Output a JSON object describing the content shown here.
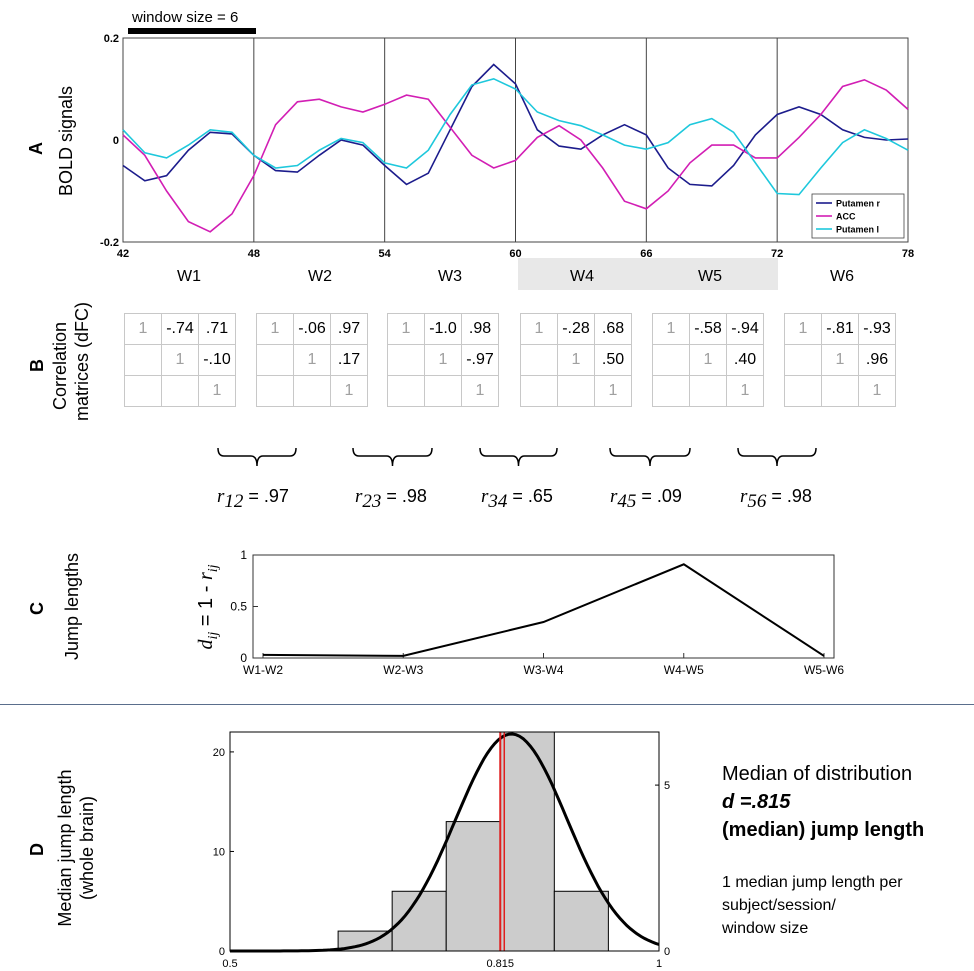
{
  "panel_a": {
    "letter": "A",
    "ylabel": "BOLD signals",
    "window_size_label": "window size = 6",
    "yticks": [
      "0.2",
      "0",
      "-0.2"
    ],
    "xticks": [
      "42",
      "48",
      "54",
      "60",
      "66",
      "72",
      "78"
    ],
    "windows": [
      "W1",
      "W2",
      "W3",
      "W4",
      "W5",
      "W6"
    ],
    "legend": [
      {
        "name": "Putamen r",
        "color": "#1c1c8c"
      },
      {
        "name": "ACC",
        "color": "#d21eb4"
      },
      {
        "name": "Putamen l",
        "color": "#1ec8dc"
      }
    ]
  },
  "panel_b": {
    "letter": "B",
    "ylabel_line1": "Correlation",
    "ylabel_line2": "matrices (dFC)",
    "matrices": [
      {
        "a": "1",
        "b": "-.74",
        "c": ".71",
        "e": "1",
        "f": "-.10",
        "i": "1"
      },
      {
        "a": "1",
        "b": "-.06",
        "c": ".97",
        "e": "1",
        "f": ".17",
        "i": "1"
      },
      {
        "a": "1",
        "b": "-1.0",
        "c": ".98",
        "e": "1",
        "f": "-.97",
        "i": "1"
      },
      {
        "a": "1",
        "b": "-.28",
        "c": ".68",
        "e": "1",
        "f": ".50",
        "i": "1"
      },
      {
        "a": "1",
        "b": "-.58",
        "c": "-.94",
        "e": "1",
        "f": ".40",
        "i": "1"
      },
      {
        "a": "1",
        "b": "-.81",
        "c": "-.93",
        "e": "1",
        "f": ".96",
        "i": "1"
      }
    ],
    "r_values": [
      {
        "sym": "r",
        "sub": "12",
        "val": " = .97"
      },
      {
        "sym": "r",
        "sub": "23",
        "val": " = .98"
      },
      {
        "sym": "r",
        "sub": "34",
        "val": " = .65"
      },
      {
        "sym": "r",
        "sub": "45",
        "val": " = .09"
      },
      {
        "sym": "r",
        "sub": "56",
        "val": " = .98"
      }
    ]
  },
  "panel_c": {
    "letter": "C",
    "ylabel": "Jump lengths",
    "formula_d": "d",
    "formula_dsub": "ij",
    "formula_mid": " = 1 - ",
    "formula_r": "r",
    "formula_rsub": "ij"
  },
  "panel_d": {
    "letter": "D",
    "ylabel_line1": "Median jump length",
    "ylabel_line2": "(whole brain)",
    "text_line1": "Median of distribution",
    "text_line2": "d =.815",
    "text_line3": "(median) jump length",
    "note_line1": "1 median jump length per",
    "note_line2": "subject/session/",
    "note_line3": "window size"
  },
  "chart_data": [
    {
      "type": "line",
      "x": [
        42,
        43,
        44,
        45,
        46,
        47,
        48,
        49,
        50,
        51,
        52,
        53,
        54,
        55,
        56,
        57,
        58,
        59,
        60,
        61,
        62,
        63,
        64,
        65,
        66,
        67,
        68,
        69,
        70,
        71,
        72,
        73,
        74,
        75,
        76,
        77,
        78
      ],
      "series": [
        {
          "name": "Putamen r",
          "values": [
            -0.05,
            -0.08,
            -0.07,
            -0.02,
            0.015,
            0.012,
            -0.03,
            -0.06,
            -0.063,
            -0.03,
            0.0,
            -0.01,
            -0.05,
            -0.087,
            -0.065,
            0.02,
            0.105,
            0.148,
            0.11,
            0.02,
            -0.012,
            -0.018,
            0.01,
            0.03,
            0.01,
            -0.055,
            -0.087,
            -0.09,
            -0.05,
            0.01,
            0.05,
            0.065,
            0.05,
            0.02,
            0.005,
            0.0,
            0.002
          ]
        },
        {
          "name": "ACC",
          "values": [
            0.01,
            -0.03,
            -0.1,
            -0.16,
            -0.18,
            -0.145,
            -0.07,
            0.03,
            0.075,
            0.08,
            0.065,
            0.055,
            0.07,
            0.088,
            0.08,
            0.025,
            -0.03,
            -0.055,
            -0.04,
            0.005,
            0.028,
            0.0,
            -0.055,
            -0.12,
            -0.135,
            -0.1,
            -0.045,
            -0.01,
            -0.01,
            -0.035,
            -0.035,
            0.005,
            0.05,
            0.105,
            0.118,
            0.098,
            0.06
          ]
        },
        {
          "name": "Putamen l",
          "values": [
            0.02,
            -0.025,
            -0.035,
            -0.01,
            0.02,
            0.015,
            -0.03,
            -0.055,
            -0.05,
            -0.02,
            0.003,
            -0.005,
            -0.045,
            -0.055,
            -0.02,
            0.05,
            0.108,
            0.12,
            0.1,
            0.055,
            0.038,
            0.028,
            0.01,
            -0.01,
            -0.018,
            -0.005,
            0.03,
            0.042,
            0.015,
            -0.045,
            -0.105,
            -0.107,
            -0.055,
            -0.005,
            0.02,
            0.003,
            -0.02
          ]
        }
      ],
      "xlim": [
        42,
        78
      ],
      "ylim": [
        -0.2,
        0.2
      ],
      "ylabel": "BOLD signals"
    },
    {
      "type": "line",
      "categories": [
        "W1-W2",
        "W2-W3",
        "W3-W4",
        "W4-W5",
        "W5-W6"
      ],
      "values": [
        0.03,
        0.02,
        0.35,
        0.91,
        0.02
      ],
      "yticks": [
        "0",
        "0.5",
        "1"
      ],
      "ylim": [
        0,
        1
      ]
    },
    {
      "type": "bar",
      "bins": [
        {
          "start": 0.5,
          "end": 0.626,
          "count": 0
        },
        {
          "start": 0.626,
          "end": 0.689,
          "count": 2
        },
        {
          "start": 0.689,
          "end": 0.752,
          "count": 6
        },
        {
          "start": 0.752,
          "end": 0.815,
          "count": 13
        },
        {
          "start": 0.815,
          "end": 0.878,
          "count": 22
        },
        {
          "start": 0.878,
          "end": 0.941,
          "count": 6
        }
      ],
      "median": 0.815,
      "xticks": [
        "0.5",
        "0.815",
        "1"
      ],
      "yticks_left": [
        "0",
        "10",
        "20"
      ],
      "yticks_right": [
        "0",
        "5"
      ],
      "xlim": [
        0.5,
        1
      ],
      "ylim": [
        0,
        22
      ],
      "density_ylim": [
        0,
        6.6
      ]
    }
  ]
}
